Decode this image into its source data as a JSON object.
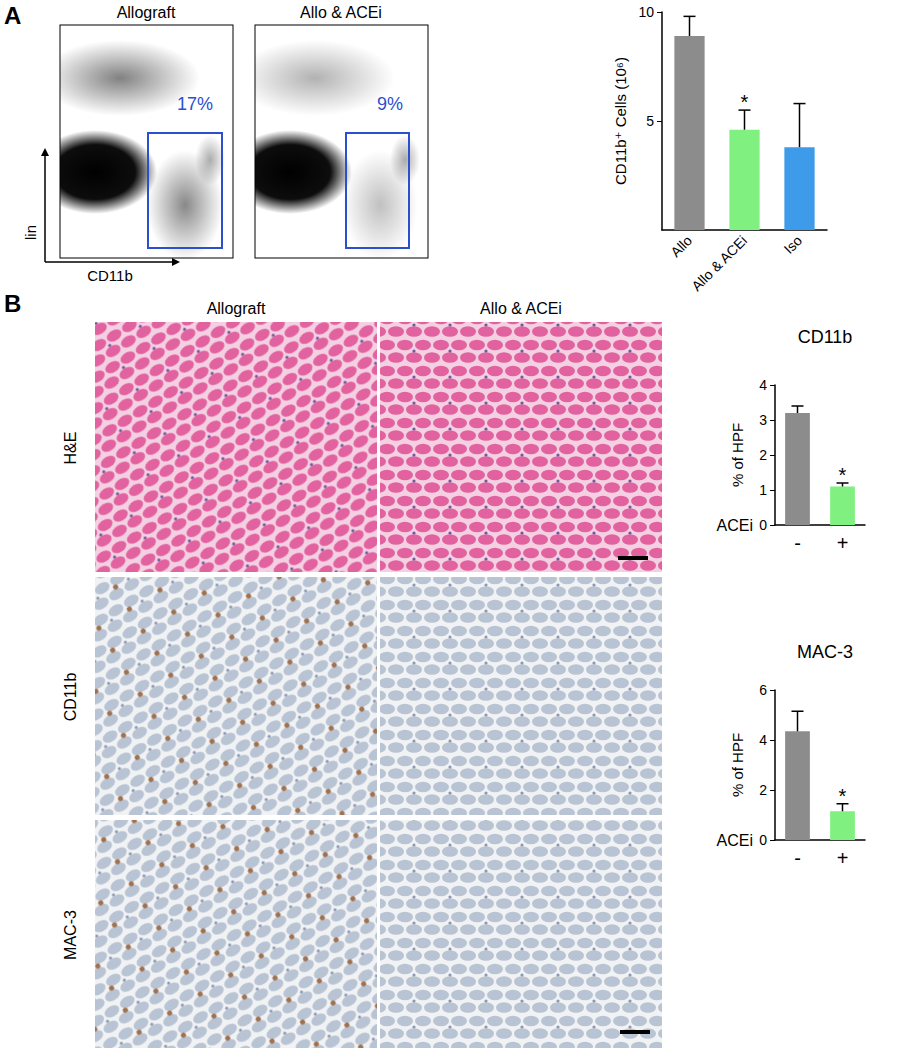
{
  "panels": {
    "A": {
      "label": "A",
      "flow": {
        "titles": [
          "Allograft",
          "Allo & ACEi"
        ],
        "gate_labels": [
          "17%",
          "9%"
        ],
        "y_axis": "lin",
        "x_axis": "CD11b"
      }
    },
    "B": {
      "label": "B",
      "columns": [
        "Allograft",
        "Allo & ACEi"
      ],
      "rows": [
        "H&E",
        "CD11b",
        "MAC-3"
      ]
    }
  },
  "chart_data": [
    {
      "type": "bar",
      "ylabel": "CD11b⁺ Cells (10⁶)",
      "categories": [
        "Allo",
        "Allo & ACEi",
        "Iso"
      ],
      "values": [
        8.9,
        4.6,
        3.8
      ],
      "errors": [
        0.9,
        0.9,
        2.0
      ],
      "colors": [
        "#8c8c8c",
        "#80f080",
        "#3d9be9"
      ],
      "ylim": [
        0,
        10
      ],
      "yticks": [
        5,
        10
      ],
      "grid": false,
      "annotations": [
        {
          "category": "Allo & ACEi",
          "text": "*"
        }
      ]
    },
    {
      "type": "bar",
      "title": "CD11b",
      "ylabel": "% of HPF",
      "xlabel": "ACEi",
      "categories": [
        "-",
        "+"
      ],
      "values": [
        3.2,
        1.1
      ],
      "errors": [
        0.2,
        0.1
      ],
      "colors": [
        "#8c8c8c",
        "#80f080"
      ],
      "ylim": [
        0,
        4
      ],
      "yticks": [
        0,
        1,
        2,
        3,
        4
      ],
      "grid": false,
      "annotations": [
        {
          "category": "+",
          "text": "*"
        }
      ]
    },
    {
      "type": "bar",
      "title": "MAC-3",
      "ylabel": "% of HPF",
      "xlabel": "ACEi",
      "categories": [
        "-",
        "+"
      ],
      "values": [
        4.35,
        1.15
      ],
      "errors": [
        0.8,
        0.3
      ],
      "colors": [
        "#8c8c8c",
        "#80f080"
      ],
      "ylim": [
        0,
        6
      ],
      "yticks": [
        0,
        2,
        4,
        6
      ],
      "grid": false,
      "annotations": [
        {
          "category": "+",
          "text": "*"
        }
      ]
    }
  ]
}
